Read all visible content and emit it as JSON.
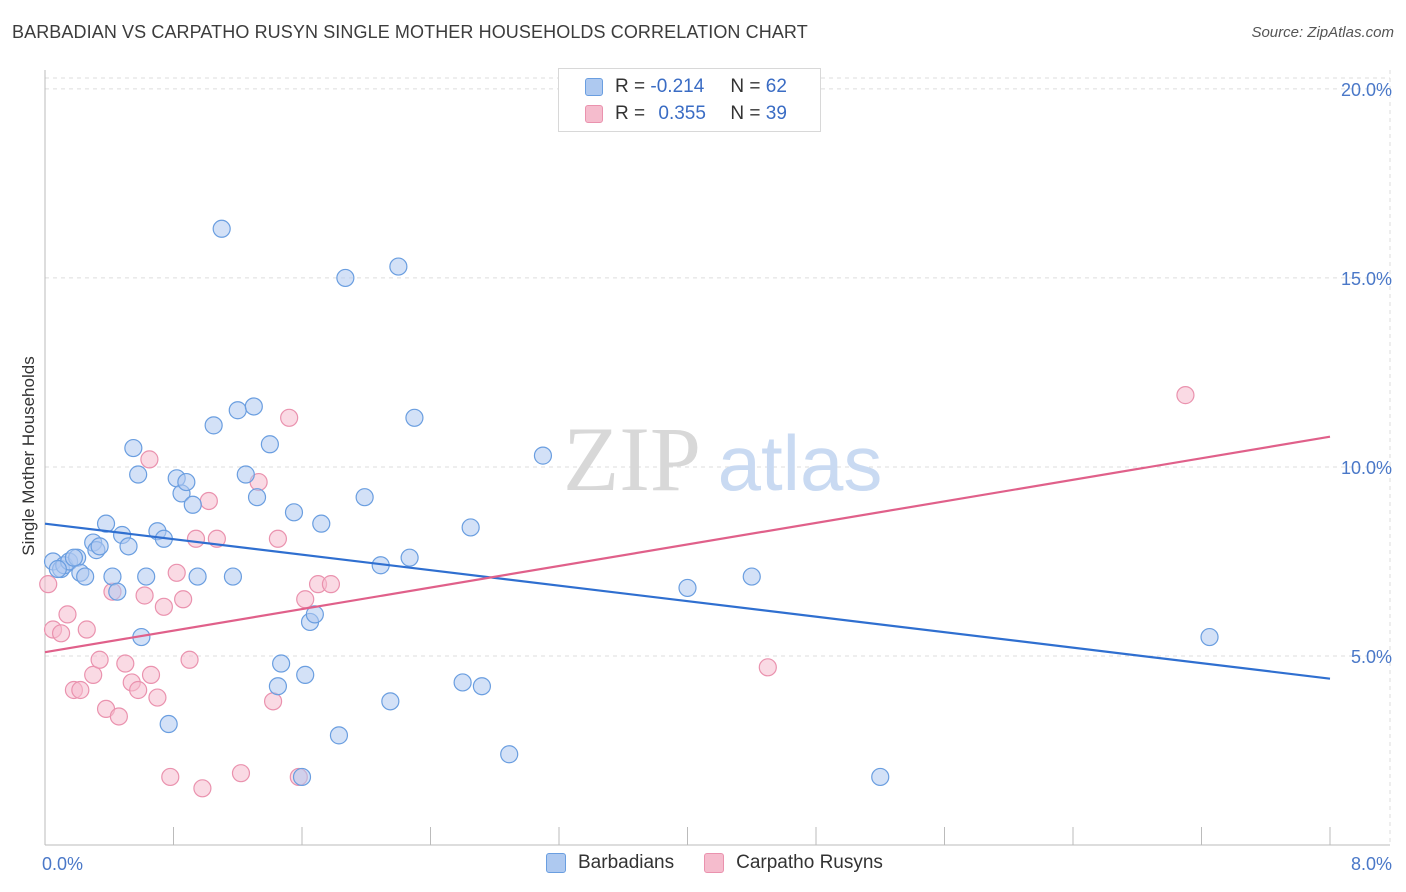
{
  "title": "BARBADIAN VS CARPATHO RUSYN SINGLE MOTHER HOUSEHOLDS CORRELATION CHART",
  "source": "Source: ZipAtlas.com",
  "watermark": {
    "zip": "ZIP",
    "atlas": "atlas"
  },
  "legend": {
    "rows": [
      {
        "r_label": "R =",
        "r_value": "-0.214",
        "n_label": "N =",
        "n_value": "62"
      },
      {
        "r_label": "R =",
        "r_value": "0.355",
        "n_label": "N =",
        "n_value": "39"
      }
    ]
  },
  "bottom_legend": {
    "barbadians": "Barbadians",
    "carpatho": "Carpatho Rusyns"
  },
  "colors": {
    "blue_fill": "#aec9f0",
    "blue_stroke": "#6a9ee0",
    "blue_line": "#2f6fd0",
    "pink_fill": "#f5bccd",
    "pink_stroke": "#ea92ae",
    "pink_line": "#e0608a",
    "grid": "#dddddd",
    "tick_text": "#4a78c8"
  },
  "chart_data": {
    "type": "scatter",
    "title": "BARBADIAN VS CARPATHO RUSYN SINGLE MOTHER HOUSEHOLDS CORRELATION CHART",
    "xlabel": "",
    "ylabel": "Single Mother Households",
    "xlim": [
      0,
      8.0
    ],
    "ylim": [
      0,
      20.5
    ],
    "x_tick_labels": [
      {
        "value": 0,
        "label": "0.0%"
      },
      {
        "value": 8,
        "label": "8.0%"
      }
    ],
    "y_tick_labels": [
      {
        "value": 5,
        "label": "5.0%"
      },
      {
        "value": 10,
        "label": "10.0%"
      },
      {
        "value": 15,
        "label": "15.0%"
      },
      {
        "value": 20,
        "label": "20.0%"
      }
    ],
    "series": [
      {
        "name": "Barbadians",
        "color": "blue",
        "trend": {
          "x": [
            0,
            8.0
          ],
          "y": [
            8.5,
            4.4
          ]
        },
        "points": [
          [
            0.05,
            7.5
          ],
          [
            0.1,
            7.3
          ],
          [
            0.12,
            7.4
          ],
          [
            0.15,
            7.5
          ],
          [
            0.2,
            7.6
          ],
          [
            0.22,
            7.2
          ],
          [
            0.25,
            7.1
          ],
          [
            0.3,
            8.0
          ],
          [
            0.32,
            7.8
          ],
          [
            0.38,
            8.5
          ],
          [
            0.42,
            7.1
          ],
          [
            0.45,
            6.7
          ],
          [
            0.48,
            8.2
          ],
          [
            0.52,
            7.9
          ],
          [
            0.55,
            10.5
          ],
          [
            0.58,
            9.8
          ],
          [
            0.6,
            5.5
          ],
          [
            0.63,
            7.1
          ],
          [
            0.7,
            8.3
          ],
          [
            0.74,
            8.1
          ],
          [
            0.77,
            3.2
          ],
          [
            0.82,
            9.7
          ],
          [
            0.85,
            9.3
          ],
          [
            0.88,
            9.6
          ],
          [
            0.92,
            9.0
          ],
          [
            0.95,
            7.1
          ],
          [
            1.05,
            11.1
          ],
          [
            1.1,
            16.3
          ],
          [
            1.17,
            7.1
          ],
          [
            1.2,
            11.5
          ],
          [
            1.25,
            9.8
          ],
          [
            1.3,
            11.6
          ],
          [
            1.32,
            9.2
          ],
          [
            1.4,
            10.6
          ],
          [
            1.45,
            4.2
          ],
          [
            1.47,
            4.8
          ],
          [
            1.55,
            8.8
          ],
          [
            1.6,
            1.8
          ],
          [
            1.62,
            4.5
          ],
          [
            1.65,
            5.9
          ],
          [
            1.68,
            6.1
          ],
          [
            1.72,
            8.5
          ],
          [
            1.83,
            2.9
          ],
          [
            1.87,
            15.0
          ],
          [
            1.99,
            9.2
          ],
          [
            2.09,
            7.4
          ],
          [
            2.15,
            3.8
          ],
          [
            2.2,
            15.3
          ],
          [
            2.27,
            7.6
          ],
          [
            2.3,
            11.3
          ],
          [
            2.6,
            4.3
          ],
          [
            2.65,
            8.4
          ],
          [
            2.72,
            4.2
          ],
          [
            2.89,
            2.4
          ],
          [
            3.1,
            10.3
          ],
          [
            4.0,
            6.8
          ],
          [
            4.4,
            7.1
          ],
          [
            5.2,
            1.8
          ],
          [
            7.25,
            5.5
          ],
          [
            0.08,
            7.3
          ],
          [
            0.18,
            7.6
          ],
          [
            0.34,
            7.9
          ]
        ]
      },
      {
        "name": "Carpatho Rusyns",
        "color": "pink",
        "trend": {
          "x": [
            0,
            8.0
          ],
          "y": [
            5.1,
            10.8
          ]
        },
        "points": [
          [
            0.02,
            6.9
          ],
          [
            0.05,
            5.7
          ],
          [
            0.1,
            5.6
          ],
          [
            0.14,
            6.1
          ],
          [
            0.18,
            4.1
          ],
          [
            0.22,
            4.1
          ],
          [
            0.26,
            5.7
          ],
          [
            0.3,
            4.5
          ],
          [
            0.34,
            4.9
          ],
          [
            0.38,
            3.6
          ],
          [
            0.42,
            6.7
          ],
          [
            0.46,
            3.4
          ],
          [
            0.5,
            4.8
          ],
          [
            0.54,
            4.3
          ],
          [
            0.58,
            4.1
          ],
          [
            0.62,
            6.6
          ],
          [
            0.66,
            4.5
          ],
          [
            0.7,
            3.9
          ],
          [
            0.74,
            6.3
          ],
          [
            0.78,
            1.8
          ],
          [
            0.82,
            7.2
          ],
          [
            0.86,
            6.5
          ],
          [
            0.9,
            4.9
          ],
          [
            0.94,
            8.1
          ],
          [
            0.98,
            1.5
          ],
          [
            1.02,
            9.1
          ],
          [
            1.07,
            8.1
          ],
          [
            1.22,
            1.9
          ],
          [
            1.33,
            9.6
          ],
          [
            1.42,
            3.8
          ],
          [
            1.45,
            8.1
          ],
          [
            1.52,
            11.3
          ],
          [
            1.58,
            1.8
          ],
          [
            1.62,
            6.5
          ],
          [
            1.7,
            6.9
          ],
          [
            1.78,
            6.9
          ],
          [
            0.65,
            10.2
          ],
          [
            4.5,
            4.7
          ],
          [
            7.1,
            11.9
          ]
        ]
      }
    ]
  }
}
